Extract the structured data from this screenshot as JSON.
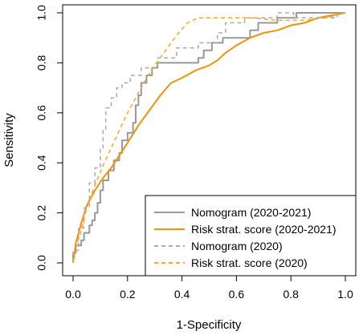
{
  "chart_data": {
    "type": "line",
    "title": "",
    "xlabel": "1-Specificity",
    "ylabel": "Sensitivity",
    "xlim": [
      0,
      1
    ],
    "ylim": [
      0,
      1
    ],
    "x_ticks": [
      "0.0",
      "0.2",
      "0.4",
      "0.6",
      "0.8",
      "1.0"
    ],
    "y_ticks": [
      "0.0",
      "0.2",
      "0.4",
      "0.6",
      "0.8",
      "1.0"
    ],
    "grid": false,
    "legend_position": "bottom-right",
    "series": [
      {
        "name": "Nomogram (2020-2021)",
        "color": "#999999",
        "dash": "solid",
        "points": [
          [
            0,
            0
          ],
          [
            0,
            0.04
          ],
          [
            0.01,
            0.04
          ],
          [
            0.01,
            0.07
          ],
          [
            0.03,
            0.07
          ],
          [
            0.03,
            0.09
          ],
          [
            0.04,
            0.09
          ],
          [
            0.04,
            0.12
          ],
          [
            0.06,
            0.12
          ],
          [
            0.06,
            0.15
          ],
          [
            0.07,
            0.15
          ],
          [
            0.07,
            0.17
          ],
          [
            0.08,
            0.17
          ],
          [
            0.08,
            0.2
          ],
          [
            0.09,
            0.2
          ],
          [
            0.09,
            0.24
          ],
          [
            0.1,
            0.24
          ],
          [
            0.1,
            0.29
          ],
          [
            0.11,
            0.29
          ],
          [
            0.11,
            0.33
          ],
          [
            0.13,
            0.33
          ],
          [
            0.13,
            0.37
          ],
          [
            0.15,
            0.37
          ],
          [
            0.15,
            0.41
          ],
          [
            0.17,
            0.41
          ],
          [
            0.17,
            0.44
          ],
          [
            0.18,
            0.44
          ],
          [
            0.18,
            0.49
          ],
          [
            0.2,
            0.49
          ],
          [
            0.2,
            0.52
          ],
          [
            0.22,
            0.52
          ],
          [
            0.22,
            0.56
          ],
          [
            0.23,
            0.56
          ],
          [
            0.23,
            0.63
          ],
          [
            0.24,
            0.63
          ],
          [
            0.24,
            0.67
          ],
          [
            0.25,
            0.67
          ],
          [
            0.25,
            0.72
          ],
          [
            0.27,
            0.72
          ],
          [
            0.27,
            0.75
          ],
          [
            0.29,
            0.75
          ],
          [
            0.29,
            0.78
          ],
          [
            0.31,
            0.78
          ],
          [
            0.31,
            0.8
          ],
          [
            0.46,
            0.8
          ],
          [
            0.46,
            0.82
          ],
          [
            0.48,
            0.82
          ],
          [
            0.48,
            0.85
          ],
          [
            0.51,
            0.85
          ],
          [
            0.51,
            0.88
          ],
          [
            0.55,
            0.88
          ],
          [
            0.55,
            0.9
          ],
          [
            0.65,
            0.9
          ],
          [
            0.65,
            0.93
          ],
          [
            0.68,
            0.93
          ],
          [
            0.68,
            0.96
          ],
          [
            0.75,
            0.96
          ],
          [
            0.75,
            0.98
          ],
          [
            0.82,
            0.98
          ],
          [
            0.82,
            1
          ],
          [
            1,
            1
          ]
        ]
      },
      {
        "name": "Risk strat. score (2020-2021)",
        "color": "#f5900a",
        "dash": "solid",
        "points": [
          [
            0,
            0
          ],
          [
            0.01,
            0.08
          ],
          [
            0.03,
            0.16
          ],
          [
            0.05,
            0.23
          ],
          [
            0.08,
            0.29
          ],
          [
            0.11,
            0.34
          ],
          [
            0.14,
            0.38
          ],
          [
            0.17,
            0.43
          ],
          [
            0.2,
            0.48
          ],
          [
            0.24,
            0.55
          ],
          [
            0.28,
            0.61
          ],
          [
            0.32,
            0.67
          ],
          [
            0.36,
            0.72
          ],
          [
            0.4,
            0.74
          ],
          [
            0.45,
            0.77
          ],
          [
            0.5,
            0.79
          ],
          [
            0.53,
            0.81
          ],
          [
            0.56,
            0.84
          ],
          [
            0.6,
            0.87
          ],
          [
            0.65,
            0.9
          ],
          [
            0.7,
            0.92
          ],
          [
            0.75,
            0.93
          ],
          [
            0.8,
            0.95
          ],
          [
            0.85,
            0.96
          ],
          [
            0.9,
            0.98
          ],
          [
            0.95,
            0.99
          ],
          [
            1,
            1
          ]
        ]
      },
      {
        "name": "Nomogram (2020)",
        "color": "#aaaaaa",
        "dash": "dashed",
        "points": [
          [
            0,
            0
          ],
          [
            0,
            0.05
          ],
          [
            0.02,
            0.05
          ],
          [
            0.02,
            0.14
          ],
          [
            0.04,
            0.14
          ],
          [
            0.04,
            0.22
          ],
          [
            0.06,
            0.22
          ],
          [
            0.06,
            0.32
          ],
          [
            0.08,
            0.32
          ],
          [
            0.08,
            0.38
          ],
          [
            0.1,
            0.38
          ],
          [
            0.1,
            0.46
          ],
          [
            0.11,
            0.46
          ],
          [
            0.11,
            0.53
          ],
          [
            0.12,
            0.53
          ],
          [
            0.12,
            0.62
          ],
          [
            0.14,
            0.62
          ],
          [
            0.14,
            0.66
          ],
          [
            0.16,
            0.66
          ],
          [
            0.16,
            0.7
          ],
          [
            0.18,
            0.7
          ],
          [
            0.18,
            0.72
          ],
          [
            0.21,
            0.72
          ],
          [
            0.21,
            0.75
          ],
          [
            0.25,
            0.75
          ],
          [
            0.25,
            0.78
          ],
          [
            0.31,
            0.78
          ],
          [
            0.31,
            0.82
          ],
          [
            0.38,
            0.82
          ],
          [
            0.38,
            0.86
          ],
          [
            0.46,
            0.86
          ],
          [
            0.46,
            0.88
          ],
          [
            0.53,
            0.88
          ],
          [
            0.53,
            0.92
          ],
          [
            0.56,
            0.92
          ],
          [
            0.56,
            0.96
          ],
          [
            0.63,
            0.96
          ],
          [
            0.63,
            0.98
          ],
          [
            0.75,
            0.98
          ],
          [
            0.75,
            1
          ],
          [
            0.81,
            1
          ],
          [
            0.81,
            0.98
          ],
          [
            0.97,
            0.98
          ],
          [
            0.97,
            1
          ],
          [
            1,
            1
          ]
        ]
      },
      {
        "name": "Risk strat. score (2020)",
        "color": "#f5a623",
        "dash": "dashed",
        "points": [
          [
            0,
            0
          ],
          [
            0.01,
            0.06
          ],
          [
            0.03,
            0.13
          ],
          [
            0.05,
            0.22
          ],
          [
            0.08,
            0.31
          ],
          [
            0.11,
            0.39
          ],
          [
            0.14,
            0.46
          ],
          [
            0.17,
            0.53
          ],
          [
            0.2,
            0.6
          ],
          [
            0.23,
            0.66
          ],
          [
            0.26,
            0.72
          ],
          [
            0.3,
            0.79
          ],
          [
            0.34,
            0.85
          ],
          [
            0.38,
            0.91
          ],
          [
            0.42,
            0.96
          ],
          [
            0.46,
            0.98
          ],
          [
            0.55,
            0.98
          ],
          [
            0.65,
            0.98
          ],
          [
            0.75,
            0.97
          ],
          [
            0.85,
            0.97
          ],
          [
            0.93,
            0.98
          ],
          [
            1,
            1
          ]
        ]
      }
    ]
  }
}
